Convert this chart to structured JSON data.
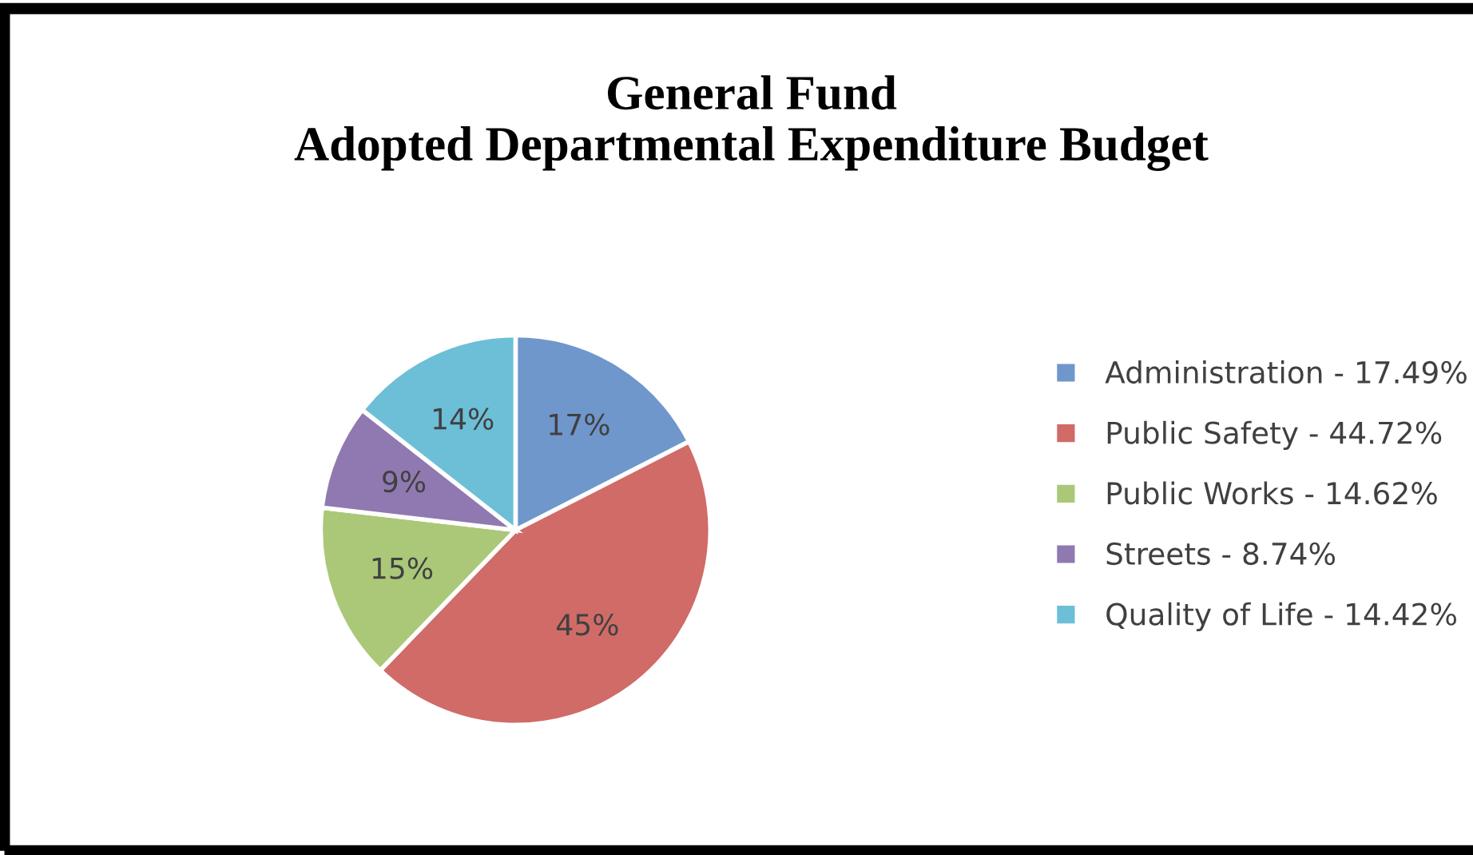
{
  "chart_data": {
    "type": "pie",
    "title": "General Fund\nAdopted Departmental Expenditure Budget",
    "categories": [
      "Administration - 17.49%",
      "Public Safety - 44.72%",
      "Public Works - 14.62%",
      "Streets - 8.74%",
      "Quality of Life - 14.42%"
    ],
    "values": [
      17.49,
      44.72,
      14.62,
      8.74,
      14.42
    ],
    "colors": [
      "#6f97cc",
      "#d06b68",
      "#aac878",
      "#9079b0",
      "#6cbfd6"
    ],
    "value_labels": [
      "17%",
      "45%",
      "15%",
      "9%",
      "14%"
    ],
    "legend": "right"
  }
}
